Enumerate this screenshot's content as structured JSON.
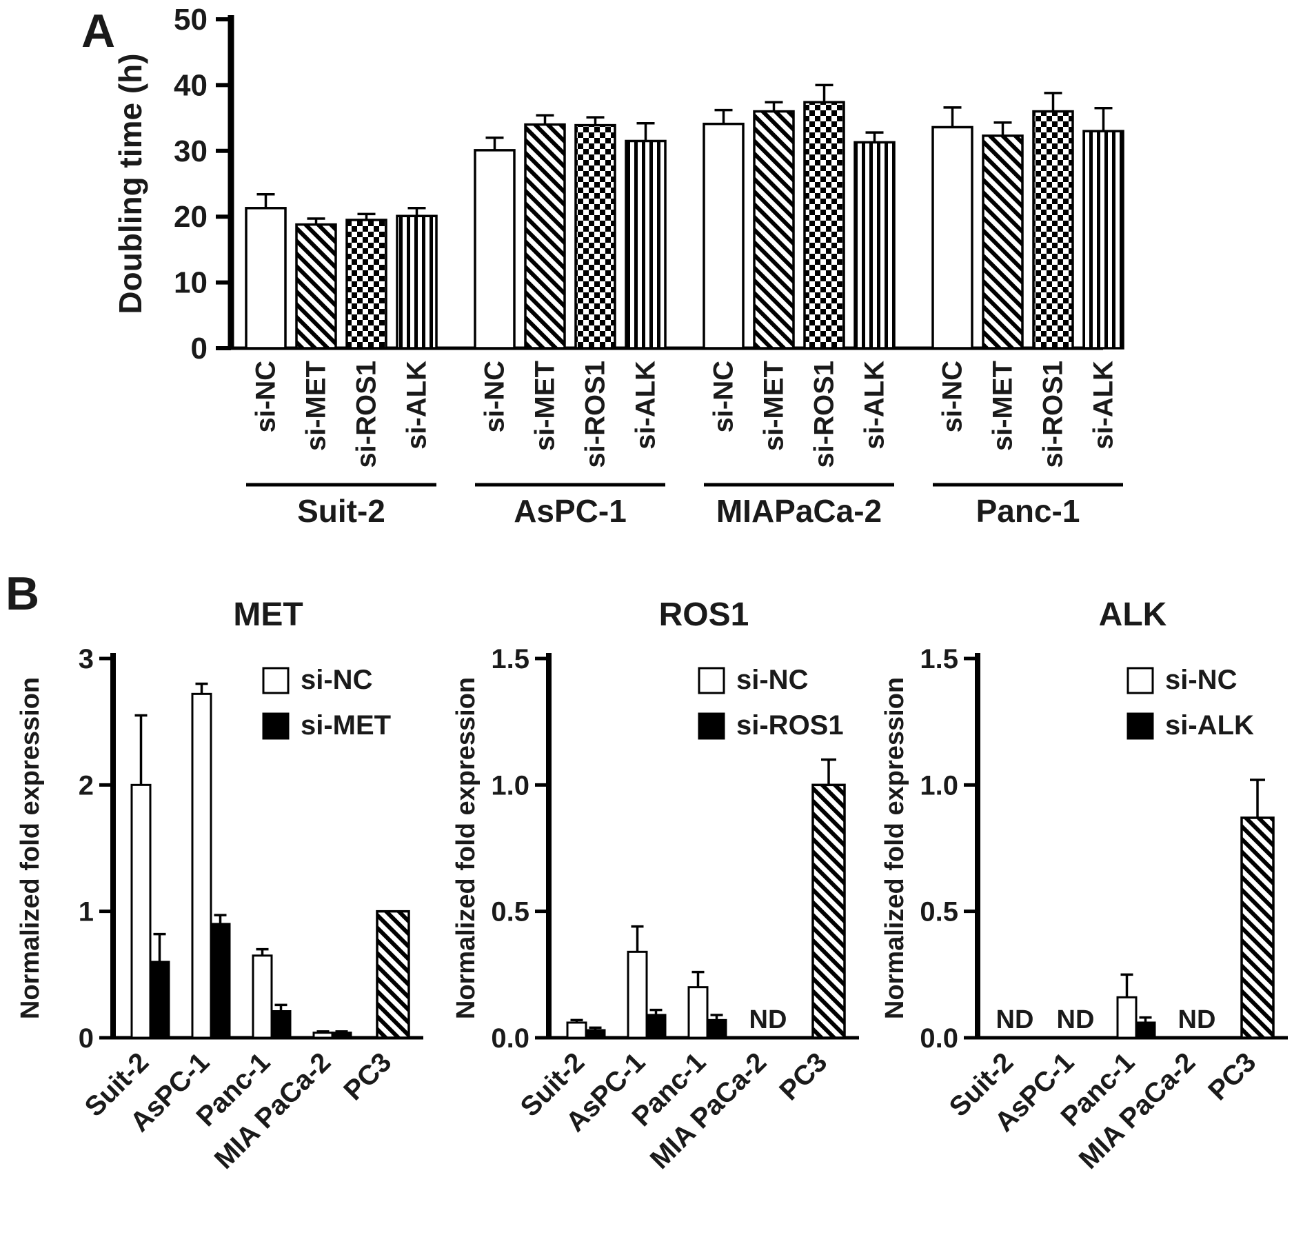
{
  "labels": {
    "panel_a": "A",
    "panel_b": "B"
  },
  "chart_data": [
    {
      "id": "doubling_time",
      "type": "bar",
      "title": "",
      "xlabel": "",
      "ylabel": "Doubling time (h)",
      "ylim": [
        0,
        50
      ],
      "yticks": [
        0,
        10,
        20,
        30,
        40,
        50
      ],
      "groups": [
        "Suit-2",
        "AsPC-1",
        "MIAPaCa-2",
        "Panc-1"
      ],
      "conditions": [
        "si-NC",
        "si-MET",
        "si-ROS1",
        "si-ALK"
      ],
      "bar_patterns": [
        "open",
        "diagonal",
        "checker",
        "vertical"
      ],
      "values": [
        [
          21.3,
          18.8,
          19.5,
          20.1
        ],
        [
          30.1,
          34.0,
          33.9,
          31.5
        ],
        [
          34.1,
          36.0,
          37.4,
          31.3
        ],
        [
          33.6,
          32.3,
          36.0,
          33.0
        ]
      ],
      "errors": [
        [
          2.1,
          0.9,
          0.9,
          1.2
        ],
        [
          1.9,
          1.4,
          1.2,
          2.7
        ],
        [
          2.1,
          1.4,
          2.6,
          1.5
        ],
        [
          3.0,
          2.0,
          2.8,
          3.5
        ]
      ],
      "grid": false,
      "legend_position": "none"
    },
    {
      "id": "met",
      "type": "bar",
      "title": "MET",
      "ylabel": "Normalized fold expression",
      "ylim": [
        0,
        3
      ],
      "yticks": [
        0,
        1,
        2,
        3
      ],
      "ytick_labels": [
        "0",
        "1",
        "2",
        "3"
      ],
      "categories": [
        "Suit-2",
        "AsPC-1",
        "Panc-1",
        "MIA PaCa-2",
        "PC3"
      ],
      "legend": [
        {
          "label": "si-NC",
          "pattern": "open"
        },
        {
          "label": "si-MET",
          "pattern": "solid"
        }
      ],
      "series": [
        {
          "name": "si-NC",
          "pattern": "open",
          "values": [
            2.0,
            2.72,
            0.65,
            0.04,
            null
          ],
          "errors": [
            0.55,
            0.08,
            0.05,
            0.01,
            null
          ]
        },
        {
          "name": "si-MET",
          "pattern": "solid",
          "values": [
            0.6,
            0.9,
            0.21,
            0.04,
            null
          ],
          "errors": [
            0.22,
            0.07,
            0.05,
            0.01,
            null
          ]
        }
      ],
      "pc3_reference": {
        "category": "PC3",
        "pattern": "diagonal",
        "value": 1.0,
        "error": 0
      },
      "nd": [],
      "grid": false,
      "legend_position": "upper-right"
    },
    {
      "id": "ros1",
      "type": "bar",
      "title": "ROS1",
      "ylabel": "Normalized fold expression",
      "ylim": [
        0,
        1.5
      ],
      "yticks": [
        0,
        0.5,
        1.0,
        1.5
      ],
      "ytick_labels": [
        "0.0",
        "0.5",
        "1.0",
        "1.5"
      ],
      "categories": [
        "Suit-2",
        "AsPC-1",
        "Panc-1",
        "MIA PaCa-2",
        "PC3"
      ],
      "legend": [
        {
          "label": "si-NC",
          "pattern": "open"
        },
        {
          "label": "si-ROS1",
          "pattern": "solid"
        }
      ],
      "series": [
        {
          "name": "si-NC",
          "pattern": "open",
          "values": [
            0.06,
            0.34,
            0.2,
            null,
            null
          ],
          "errors": [
            0.01,
            0.1,
            0.06,
            null,
            null
          ]
        },
        {
          "name": "si-ROS1",
          "pattern": "solid",
          "values": [
            0.03,
            0.09,
            0.07,
            null,
            null
          ],
          "errors": [
            0.01,
            0.02,
            0.02,
            null,
            null
          ]
        }
      ],
      "pc3_reference": {
        "category": "PC3",
        "pattern": "diagonal",
        "value": 1.0,
        "error": 0.1
      },
      "nd": [
        "MIA PaCa-2"
      ],
      "grid": false,
      "legend_position": "upper-right"
    },
    {
      "id": "alk",
      "type": "bar",
      "title": "ALK",
      "ylabel": "Normalized fold expression",
      "ylim": [
        0,
        1.5
      ],
      "yticks": [
        0,
        0.5,
        1.0,
        1.5
      ],
      "ytick_labels": [
        "0.0",
        "0.5",
        "1.0",
        "1.5"
      ],
      "categories": [
        "Suit-2",
        "AsPC-1",
        "Panc-1",
        "MIA PaCa-2",
        "PC3"
      ],
      "legend": [
        {
          "label": "si-NC",
          "pattern": "open"
        },
        {
          "label": "si-ALK",
          "pattern": "solid"
        }
      ],
      "series": [
        {
          "name": "si-NC",
          "pattern": "open",
          "values": [
            null,
            null,
            0.16,
            null,
            null
          ],
          "errors": [
            null,
            null,
            0.09,
            null,
            null
          ]
        },
        {
          "name": "si-ALK",
          "pattern": "solid",
          "values": [
            null,
            null,
            0.06,
            null,
            null
          ],
          "errors": [
            null,
            null,
            0.02,
            null,
            null
          ]
        }
      ],
      "pc3_reference": {
        "category": "PC3",
        "pattern": "diagonal",
        "value": 0.87,
        "error": 0.15
      },
      "nd": [
        "Suit-2",
        "AsPC-1",
        "MIA PaCa-2"
      ],
      "grid": false,
      "legend_position": "upper-right"
    }
  ]
}
